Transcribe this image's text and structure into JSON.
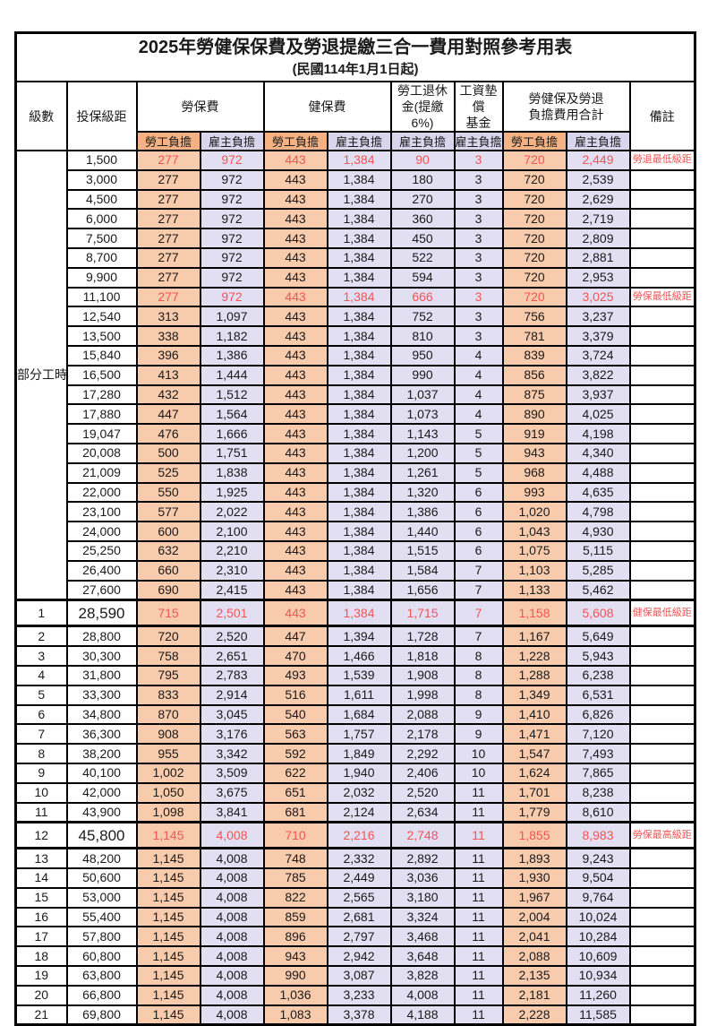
{
  "title": "2025年勞健保保費及勞退提繳三合一費用對照參考用表",
  "subtitle": "(民國114年1月1日起)",
  "colors": {
    "worker_header": "#F4B183",
    "worker_cell": "#F8CBAD",
    "employer_header": "#D9D5EC",
    "employer_cell": "#E2DFF2",
    "highlight_red": "#F25555"
  },
  "headers": {
    "level": "級數",
    "bracket": "投保級距",
    "labor": "勞保費",
    "health": "健保費",
    "pension": "勞工退休\n金(提繳6%)",
    "wage_fund": "工資墊償\n基金",
    "total": "勞健保及勞退\n負擔費用合計",
    "note": "備註",
    "worker": "勞工負擔",
    "employer": "雇主負擔"
  },
  "part_time": {
    "label": "部分工時",
    "span": 23
  },
  "rows": [
    {
      "bracket": "1,500",
      "values": [
        "277",
        "972",
        "443",
        "1,384",
        "90",
        "3",
        "720",
        "2,449"
      ],
      "note": "勞退最低級距",
      "red": true
    },
    {
      "bracket": "3,000",
      "values": [
        "277",
        "972",
        "443",
        "1,384",
        "180",
        "3",
        "720",
        "2,539"
      ],
      "note": ""
    },
    {
      "bracket": "4,500",
      "values": [
        "277",
        "972",
        "443",
        "1,384",
        "270",
        "3",
        "720",
        "2,629"
      ],
      "note": ""
    },
    {
      "bracket": "6,000",
      "values": [
        "277",
        "972",
        "443",
        "1,384",
        "360",
        "3",
        "720",
        "2,719"
      ],
      "note": ""
    },
    {
      "bracket": "7,500",
      "values": [
        "277",
        "972",
        "443",
        "1,384",
        "450",
        "3",
        "720",
        "2,809"
      ],
      "note": ""
    },
    {
      "bracket": "8,700",
      "values": [
        "277",
        "972",
        "443",
        "1,384",
        "522",
        "3",
        "720",
        "2,881"
      ],
      "note": ""
    },
    {
      "bracket": "9,900",
      "values": [
        "277",
        "972",
        "443",
        "1,384",
        "594",
        "3",
        "720",
        "2,953"
      ],
      "note": ""
    },
    {
      "bracket": "11,100",
      "values": [
        "277",
        "972",
        "443",
        "1,384",
        "666",
        "3",
        "720",
        "3,025"
      ],
      "note": "勞保最低級距",
      "red": true
    },
    {
      "bracket": "12,540",
      "values": [
        "313",
        "1,097",
        "443",
        "1,384",
        "752",
        "3",
        "756",
        "3,237"
      ],
      "note": ""
    },
    {
      "bracket": "13,500",
      "values": [
        "338",
        "1,182",
        "443",
        "1,384",
        "810",
        "3",
        "781",
        "3,379"
      ],
      "note": ""
    },
    {
      "bracket": "15,840",
      "values": [
        "396",
        "1,386",
        "443",
        "1,384",
        "950",
        "4",
        "839",
        "3,724"
      ],
      "note": ""
    },
    {
      "bracket": "16,500",
      "values": [
        "413",
        "1,444",
        "443",
        "1,384",
        "990",
        "4",
        "856",
        "3,822"
      ],
      "note": ""
    },
    {
      "bracket": "17,280",
      "values": [
        "432",
        "1,512",
        "443",
        "1,384",
        "1,037",
        "4",
        "875",
        "3,937"
      ],
      "note": ""
    },
    {
      "bracket": "17,880",
      "values": [
        "447",
        "1,564",
        "443",
        "1,384",
        "1,073",
        "4",
        "890",
        "4,025"
      ],
      "note": ""
    },
    {
      "bracket": "19,047",
      "values": [
        "476",
        "1,666",
        "443",
        "1,384",
        "1,143",
        "5",
        "919",
        "4,198"
      ],
      "note": ""
    },
    {
      "bracket": "20,008",
      "values": [
        "500",
        "1,751",
        "443",
        "1,384",
        "1,200",
        "5",
        "943",
        "4,340"
      ],
      "note": ""
    },
    {
      "bracket": "21,009",
      "values": [
        "525",
        "1,838",
        "443",
        "1,384",
        "1,261",
        "5",
        "968",
        "4,488"
      ],
      "note": ""
    },
    {
      "bracket": "22,000",
      "values": [
        "550",
        "1,925",
        "443",
        "1,384",
        "1,320",
        "6",
        "993",
        "4,635"
      ],
      "note": ""
    },
    {
      "bracket": "23,100",
      "values": [
        "577",
        "2,022",
        "443",
        "1,384",
        "1,386",
        "6",
        "1,020",
        "4,798"
      ],
      "note": ""
    },
    {
      "bracket": "24,000",
      "values": [
        "600",
        "2,100",
        "443",
        "1,384",
        "1,440",
        "6",
        "1,043",
        "4,930"
      ],
      "note": ""
    },
    {
      "bracket": "25,250",
      "values": [
        "632",
        "2,210",
        "443",
        "1,384",
        "1,515",
        "6",
        "1,075",
        "5,115"
      ],
      "note": ""
    },
    {
      "bracket": "26,400",
      "values": [
        "660",
        "2,310",
        "443",
        "1,384",
        "1,584",
        "7",
        "1,103",
        "5,285"
      ],
      "note": ""
    },
    {
      "bracket": "27,600",
      "values": [
        "690",
        "2,415",
        "443",
        "1,384",
        "1,656",
        "7",
        "1,133",
        "5,462"
      ],
      "note": ""
    },
    {
      "level": "1",
      "bracket": "28,590",
      "values": [
        "715",
        "2,501",
        "443",
        "1,384",
        "1,715",
        "7",
        "1,158",
        "5,608"
      ],
      "note": "健保最低級距",
      "red": true,
      "big": true
    },
    {
      "level": "2",
      "bracket": "28,800",
      "values": [
        "720",
        "2,520",
        "447",
        "1,394",
        "1,728",
        "7",
        "1,167",
        "5,649"
      ],
      "note": ""
    },
    {
      "level": "3",
      "bracket": "30,300",
      "values": [
        "758",
        "2,651",
        "470",
        "1,466",
        "1,818",
        "8",
        "1,228",
        "5,943"
      ],
      "note": ""
    },
    {
      "level": "4",
      "bracket": "31,800",
      "values": [
        "795",
        "2,783",
        "493",
        "1,539",
        "1,908",
        "8",
        "1,288",
        "6,238"
      ],
      "note": ""
    },
    {
      "level": "5",
      "bracket": "33,300",
      "values": [
        "833",
        "2,914",
        "516",
        "1,611",
        "1,998",
        "8",
        "1,349",
        "6,531"
      ],
      "note": ""
    },
    {
      "level": "6",
      "bracket": "34,800",
      "values": [
        "870",
        "3,045",
        "540",
        "1,684",
        "2,088",
        "9",
        "1,410",
        "6,826"
      ],
      "note": ""
    },
    {
      "level": "7",
      "bracket": "36,300",
      "values": [
        "908",
        "3,176",
        "563",
        "1,757",
        "2,178",
        "9",
        "1,471",
        "7,120"
      ],
      "note": ""
    },
    {
      "level": "8",
      "bracket": "38,200",
      "values": [
        "955",
        "3,342",
        "592",
        "1,849",
        "2,292",
        "10",
        "1,547",
        "7,493"
      ],
      "note": ""
    },
    {
      "level": "9",
      "bracket": "40,100",
      "values": [
        "1,002",
        "3,509",
        "622",
        "1,940",
        "2,406",
        "10",
        "1,624",
        "7,865"
      ],
      "note": ""
    },
    {
      "level": "10",
      "bracket": "42,000",
      "values": [
        "1,050",
        "3,675",
        "651",
        "2,032",
        "2,520",
        "11",
        "1,701",
        "8,238"
      ],
      "note": ""
    },
    {
      "level": "11",
      "bracket": "43,900",
      "values": [
        "1,098",
        "3,841",
        "681",
        "2,124",
        "2,634",
        "11",
        "1,779",
        "8,610"
      ],
      "note": ""
    },
    {
      "level": "12",
      "bracket": "45,800",
      "values": [
        "1,145",
        "4,008",
        "710",
        "2,216",
        "2,748",
        "11",
        "1,855",
        "8,983"
      ],
      "note": "勞保最高級距",
      "red": true,
      "big": true
    },
    {
      "level": "13",
      "bracket": "48,200",
      "values": [
        "1,145",
        "4,008",
        "748",
        "2,332",
        "2,892",
        "11",
        "1,893",
        "9,243"
      ],
      "note": ""
    },
    {
      "level": "14",
      "bracket": "50,600",
      "values": [
        "1,145",
        "4,008",
        "785",
        "2,449",
        "3,036",
        "11",
        "1,930",
        "9,504"
      ],
      "note": ""
    },
    {
      "level": "15",
      "bracket": "53,000",
      "values": [
        "1,145",
        "4,008",
        "822",
        "2,565",
        "3,180",
        "11",
        "1,967",
        "9,764"
      ],
      "note": ""
    },
    {
      "level": "16",
      "bracket": "55,400",
      "values": [
        "1,145",
        "4,008",
        "859",
        "2,681",
        "3,324",
        "11",
        "2,004",
        "10,024"
      ],
      "note": ""
    },
    {
      "level": "17",
      "bracket": "57,800",
      "values": [
        "1,145",
        "4,008",
        "896",
        "2,797",
        "3,468",
        "11",
        "2,041",
        "10,284"
      ],
      "note": ""
    },
    {
      "level": "18",
      "bracket": "60,800",
      "values": [
        "1,145",
        "4,008",
        "943",
        "2,942",
        "3,648",
        "11",
        "2,088",
        "10,609"
      ],
      "note": ""
    },
    {
      "level": "19",
      "bracket": "63,800",
      "values": [
        "1,145",
        "4,008",
        "990",
        "3,087",
        "3,828",
        "11",
        "2,135",
        "10,934"
      ],
      "note": ""
    },
    {
      "level": "20",
      "bracket": "66,800",
      "values": [
        "1,145",
        "4,008",
        "1,036",
        "3,233",
        "4,008",
        "11",
        "2,181",
        "11,260"
      ],
      "note": ""
    },
    {
      "level": "21",
      "bracket": "69,800",
      "values": [
        "1,145",
        "4,008",
        "1,083",
        "3,378",
        "4,188",
        "11",
        "2,228",
        "11,585"
      ],
      "note": ""
    }
  ]
}
